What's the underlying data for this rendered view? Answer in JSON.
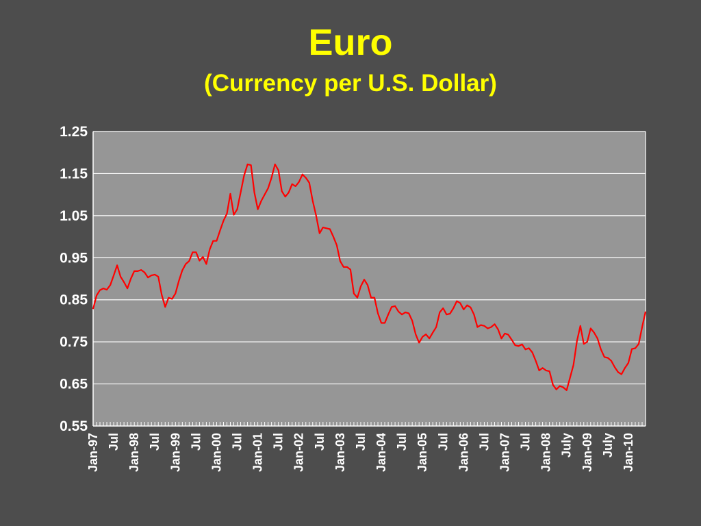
{
  "slide": {
    "title": "Euro",
    "subtitle": "(Currency per U.S. Dollar)"
  },
  "colors": {
    "background": "#4d4d4d",
    "plot_area": "#969696",
    "gridline": "#ffffff",
    "series_line": "#ff0000",
    "title_text": "#ffff00",
    "tick_text": "#ffffff"
  },
  "chart_data": {
    "type": "line",
    "title": "Euro",
    "subtitle": "(Currency per U.S. Dollar)",
    "ylim": [
      0.55,
      1.25
    ],
    "yticks": [
      "1.25",
      "1.15",
      "1.05",
      "0.95",
      "0.85",
      "0.75",
      "0.65",
      "0.55"
    ],
    "grid": true,
    "legend": "none",
    "x_tick_labels": [
      "Jan-97",
      "Jul",
      "Jan-98",
      "Jul",
      "Jan-99",
      "Jul",
      "Jan-00",
      "Jul",
      "Jan-01",
      "Jul",
      "Jan-02",
      "Jul",
      "Jan-03",
      "Jul",
      "Jan-04",
      "Jul",
      "Jan-05",
      "Jul",
      "Jan-06",
      "Jul",
      "Jan-07",
      "Jul",
      "Jan-08",
      "July",
      "Jan-09",
      "July",
      "Jan-10"
    ],
    "x_start": "Jan-97",
    "series": [
      {
        "values": [
          0.828,
          0.86,
          0.873,
          0.877,
          0.874,
          0.885,
          0.908,
          0.932,
          0.905,
          0.892,
          0.877,
          0.9,
          0.918,
          0.918,
          0.921,
          0.915,
          0.903,
          0.908,
          0.91,
          0.905,
          0.862,
          0.833,
          0.855,
          0.852,
          0.865,
          0.895,
          0.92,
          0.935,
          0.942,
          0.963,
          0.963,
          0.943,
          0.952,
          0.935,
          0.97,
          0.99,
          0.99,
          1.015,
          1.038,
          1.055,
          1.102,
          1.052,
          1.065,
          1.105,
          1.145,
          1.172,
          1.17,
          1.105,
          1.065,
          1.085,
          1.1,
          1.115,
          1.14,
          1.172,
          1.158,
          1.108,
          1.095,
          1.105,
          1.125,
          1.12,
          1.13,
          1.148,
          1.14,
          1.128,
          1.085,
          1.05,
          1.008,
          1.022,
          1.02,
          1.018,
          1.0,
          0.98,
          0.942,
          0.928,
          0.928,
          0.922,
          0.865,
          0.855,
          0.882,
          0.898,
          0.885,
          0.855,
          0.855,
          0.818,
          0.795,
          0.795,
          0.815,
          0.833,
          0.835,
          0.822,
          0.815,
          0.82,
          0.818,
          0.8,
          0.768,
          0.748,
          0.762,
          0.768,
          0.758,
          0.772,
          0.785,
          0.82,
          0.83,
          0.815,
          0.817,
          0.83,
          0.847,
          0.842,
          0.827,
          0.837,
          0.832,
          0.815,
          0.785,
          0.79,
          0.788,
          0.782,
          0.785,
          0.792,
          0.78,
          0.758,
          0.77,
          0.767,
          0.755,
          0.742,
          0.74,
          0.744,
          0.732,
          0.735,
          0.725,
          0.705,
          0.682,
          0.688,
          0.682,
          0.68,
          0.648,
          0.637,
          0.645,
          0.642,
          0.635,
          0.665,
          0.695,
          0.752,
          0.788,
          0.745,
          0.75,
          0.782,
          0.772,
          0.758,
          0.732,
          0.714,
          0.712,
          0.705,
          0.69,
          0.678,
          0.673,
          0.688,
          0.7,
          0.733,
          0.735,
          0.745,
          0.785,
          0.822
        ]
      }
    ]
  }
}
